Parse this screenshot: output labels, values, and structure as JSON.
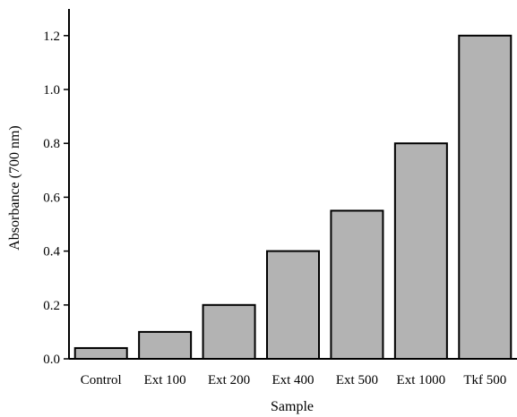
{
  "chart_data": {
    "type": "bar",
    "categories": [
      "Control",
      "Ext 100",
      "Ext 200",
      "Ext 400",
      "Ext 500",
      "Ext 1000",
      "Tkf 500"
    ],
    "values": [
      0.04,
      0.1,
      0.2,
      0.4,
      0.55,
      0.8,
      1.2
    ],
    "xlabel": "Sample",
    "ylabel": "Absorbance (700 nm)",
    "ylim": [
      0,
      1.3
    ],
    "yticks": [
      "0.0",
      "0.2",
      "0.4",
      "0.6",
      "0.8",
      "1.0",
      "1.2"
    ],
    "grid": false,
    "bar_color": "#b3b3b3",
    "bar_edge_color": "#000000"
  }
}
